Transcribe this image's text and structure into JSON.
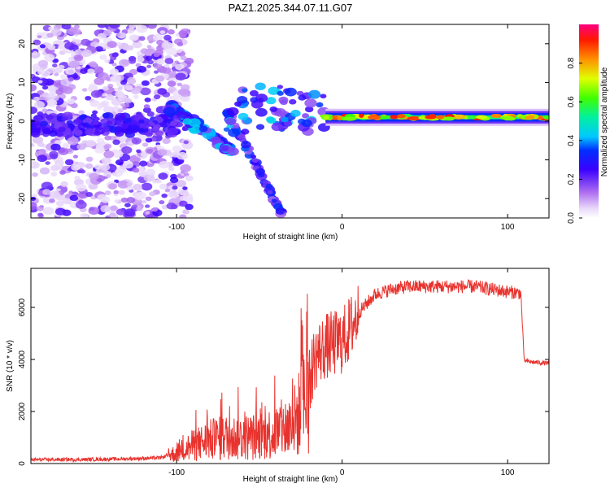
{
  "title": "PAZ1.2025.344.07.11.G07",
  "chart_data": [
    {
      "type": "heatmap",
      "title": "PAZ1.2025.344.07.11.G07",
      "xlabel": "Height of straight line (km)",
      "ylabel": "Frequency (Hz)",
      "xlim": [
        -188,
        125
      ],
      "ylim": [
        -25,
        25
      ],
      "xticks": [
        -100,
        0,
        100
      ],
      "yticks": [
        -20,
        -10,
        0,
        10,
        20
      ],
      "colorbar": {
        "label": "Normalized spectral amplitude",
        "range": [
          0,
          1
        ],
        "ticks": [
          0.0,
          0.2,
          0.4,
          0.6,
          0.8
        ]
      },
      "features": [
        {
          "name": "main tone",
          "x_range": [
            -10,
            125
          ],
          "freq_hz": 1,
          "amplitude": 0.9
        },
        {
          "name": "descending branch 1",
          "x": [
            -105,
            -65
          ],
          "freq_hz": [
            4,
            -8
          ]
        },
        {
          "name": "descending branch 2",
          "x": [
            -70,
            -35
          ],
          "freq_hz": [
            3,
            -25
          ]
        },
        {
          "name": "noise region",
          "x_range": [
            -188,
            -100
          ],
          "freq_range_hz": [
            -25,
            25
          ]
        }
      ]
    },
    {
      "type": "line",
      "xlabel": "Height of straight line (km)",
      "ylabel": "SNR (10 * v/v)",
      "xlim": [
        -188,
        125
      ],
      "ylim": [
        0,
        7500
      ],
      "xticks": [
        -100,
        0,
        100
      ],
      "yticks": [
        0,
        2000,
        4000,
        6000
      ],
      "color": "#e8322d",
      "series": [
        {
          "name": "SNR",
          "x": [
            -188,
            -160,
            -130,
            -110,
            -100,
            -90,
            -80,
            -70,
            -60,
            -50,
            -40,
            -30,
            -25,
            -20,
            -17,
            -15,
            -10,
            -5,
            0,
            5,
            10,
            20,
            30,
            40,
            50,
            60,
            70,
            80,
            90,
            100,
            108,
            110,
            115,
            125
          ],
          "y": [
            150,
            150,
            180,
            220,
            400,
            700,
            900,
            1000,
            1000,
            1050,
            1200,
            1500,
            2000,
            3000,
            4000,
            4200,
            4500,
            4600,
            4700,
            5200,
            5800,
            6500,
            6700,
            6800,
            6800,
            6800,
            6800,
            6800,
            6700,
            6600,
            6550,
            3950,
            3900,
            3850
          ]
        }
      ]
    }
  ]
}
